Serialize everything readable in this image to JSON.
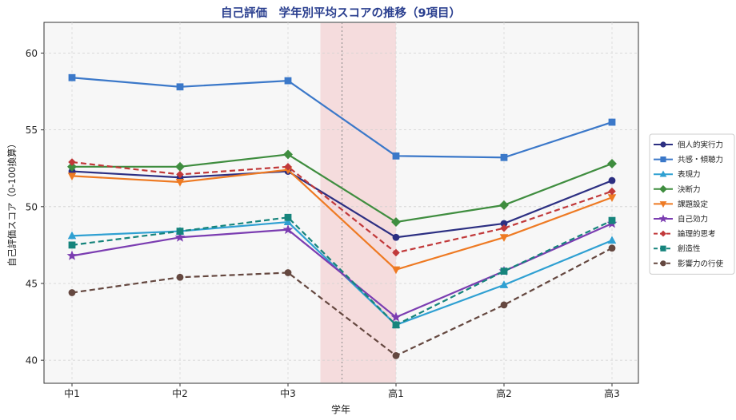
{
  "chart_data": {
    "type": "line",
    "title": "自己評価　学年別平均スコアの推移（9項目）",
    "xlabel": "学年",
    "ylabel": "自己評価スコア（0-100換算）",
    "categories": [
      "中1",
      "中2",
      "中3",
      "高1",
      "高2",
      "高3"
    ],
    "ylim": [
      38.5,
      62
    ],
    "yticks": [
      40,
      45,
      50,
      55,
      60
    ],
    "grid": true,
    "legend_position": "right",
    "highlight_band": {
      "from": 2.3,
      "to": 3.0,
      "color": "#f4c6c9",
      "divider": 2.5
    },
    "series": [
      {
        "name": "個人的実行力",
        "color": "#2c2f82",
        "marker": "circle",
        "dash": false,
        "values": [
          52.3,
          51.9,
          52.3,
          48.0,
          48.9,
          51.7
        ]
      },
      {
        "name": "共感・傾聴力",
        "color": "#3b78c9",
        "marker": "square",
        "dash": false,
        "values": [
          58.4,
          57.8,
          58.2,
          53.3,
          53.2,
          55.5
        ]
      },
      {
        "name": "表現力",
        "color": "#2fa0d2",
        "marker": "triangle-up",
        "dash": false,
        "values": [
          48.1,
          48.4,
          49.0,
          42.3,
          44.9,
          47.8
        ]
      },
      {
        "name": "決断力",
        "color": "#3f8d3f",
        "marker": "diamond",
        "dash": false,
        "values": [
          52.6,
          52.6,
          53.4,
          49.0,
          50.1,
          52.8
        ]
      },
      {
        "name": "課題設定",
        "color": "#ee7a23",
        "marker": "triangle-down",
        "dash": false,
        "values": [
          52.0,
          51.6,
          52.4,
          45.9,
          48.0,
          50.6
        ]
      },
      {
        "name": "自己効力",
        "color": "#7b3db1",
        "marker": "star",
        "dash": false,
        "values": [
          46.8,
          48.0,
          48.5,
          42.8,
          45.8,
          48.9
        ]
      },
      {
        "name": "論理的思考",
        "color": "#c1393a",
        "marker": "diamond-small",
        "dash": true,
        "values": [
          52.9,
          52.1,
          52.6,
          47.0,
          48.6,
          51.0
        ]
      },
      {
        "name": "創造性",
        "color": "#16847c",
        "marker": "square",
        "dash": true,
        "values": [
          47.5,
          48.4,
          49.3,
          42.3,
          45.8,
          49.1
        ]
      },
      {
        "name": "影響力の行使",
        "color": "#654840",
        "marker": "circle",
        "dash": true,
        "values": [
          44.4,
          45.4,
          45.7,
          40.3,
          43.6,
          47.3
        ]
      }
    ]
  }
}
